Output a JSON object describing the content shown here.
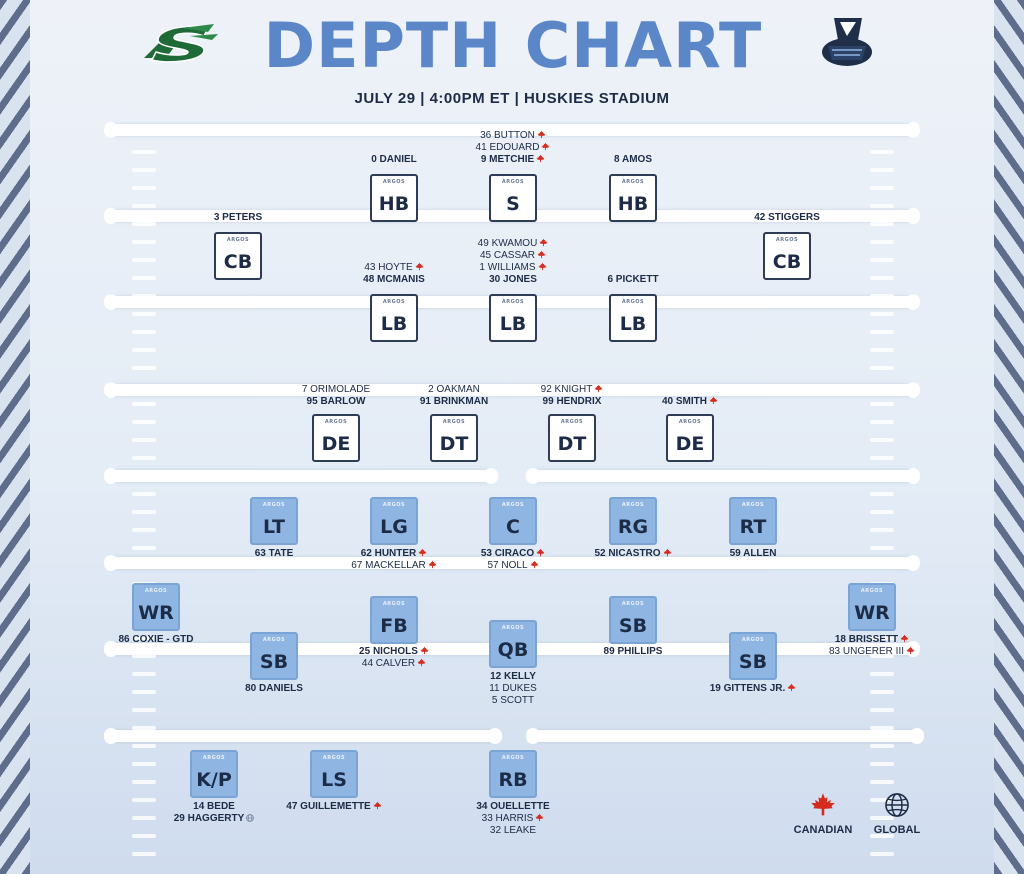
{
  "header": {
    "title": "DEPTH CHART",
    "subtitle": "JULY 29 | 4:00PM ET | HUSKIES STADIUM"
  },
  "colors": {
    "title": "#5b86c7",
    "text": "#1c2b46",
    "canadian": "#d52b1e",
    "offense_box": "#8fb5e3",
    "defense_box": "#ffffff"
  },
  "box_tag": "ARGOS",
  "legend": {
    "canadian": "CANADIAN",
    "global": "GLOBAL",
    "canadian_icon": "maple-leaf-icon",
    "global_icon": "globe-icon"
  },
  "positions": [
    {
      "id": "hb-left",
      "label": "HB",
      "unit": "defense",
      "players": [
        {
          "name": "0 DANIEL",
          "bold": true
        }
      ]
    },
    {
      "id": "s",
      "label": "S",
      "unit": "defense",
      "players": [
        {
          "name": "36 BUTTON",
          "can": true
        },
        {
          "name": "41 EDOUARD",
          "can": true
        },
        {
          "name": "9 METCHIE",
          "bold": true,
          "can": true
        }
      ]
    },
    {
      "id": "hb-right",
      "label": "HB",
      "unit": "defense",
      "players": [
        {
          "name": "8 AMOS",
          "bold": true
        }
      ]
    },
    {
      "id": "cb-left",
      "label": "CB",
      "unit": "defense",
      "players": [
        {
          "name": "3 PETERS",
          "bold": true
        }
      ]
    },
    {
      "id": "cb-right",
      "label": "CB",
      "unit": "defense",
      "players": [
        {
          "name": "42 STIGGERS",
          "bold": true
        }
      ]
    },
    {
      "id": "lb-left",
      "label": "LB",
      "unit": "defense",
      "players": [
        {
          "name": "43 HOYTE",
          "can": true
        },
        {
          "name": "48 MCMANIS",
          "bold": true
        }
      ]
    },
    {
      "id": "lb-mid",
      "label": "LB",
      "unit": "defense",
      "players": [
        {
          "name": "49 KWAMOU",
          "can": true
        },
        {
          "name": "45 CASSAR",
          "can": true
        },
        {
          "name": "1 WILLIAMS",
          "can": true
        },
        {
          "name": "30 JONES",
          "bold": true
        }
      ]
    },
    {
      "id": "lb-right",
      "label": "LB",
      "unit": "defense",
      "players": [
        {
          "name": "6 PICKETT",
          "bold": true
        }
      ]
    },
    {
      "id": "de-left",
      "label": "DE",
      "unit": "defense",
      "players": [
        {
          "name": "7 ORIMOLADE"
        },
        {
          "name": "95 BARLOW",
          "bold": true
        }
      ]
    },
    {
      "id": "dt-left",
      "label": "DT",
      "unit": "defense",
      "players": [
        {
          "name": "2 OAKMAN"
        },
        {
          "name": "91 BRINKMAN",
          "bold": true
        }
      ]
    },
    {
      "id": "dt-right",
      "label": "DT",
      "unit": "defense",
      "players": [
        {
          "name": "92 KNIGHT",
          "can": true
        },
        {
          "name": "99 HENDRIX",
          "bold": true
        }
      ]
    },
    {
      "id": "de-right",
      "label": "DE",
      "unit": "defense",
      "players": [
        {
          "name": "40 SMITH",
          "bold": true,
          "can": true
        }
      ]
    },
    {
      "id": "lt",
      "label": "LT",
      "unit": "offense",
      "players": [
        {
          "name": "63 TATE",
          "bold": true
        }
      ]
    },
    {
      "id": "lg",
      "label": "LG",
      "unit": "offense",
      "players": [
        {
          "name": "62 HUNTER",
          "bold": true,
          "can": true
        },
        {
          "name": "67 MACKELLAR",
          "can": true
        }
      ]
    },
    {
      "id": "c",
      "label": "C",
      "unit": "offense",
      "players": [
        {
          "name": "53 CIRACO",
          "bold": true,
          "can": true
        },
        {
          "name": "57 NOLL",
          "can": true
        }
      ]
    },
    {
      "id": "rg",
      "label": "RG",
      "unit": "offense",
      "players": [
        {
          "name": "52 NICASTRO",
          "bold": true,
          "can": true
        }
      ]
    },
    {
      "id": "rt",
      "label": "RT",
      "unit": "offense",
      "players": [
        {
          "name": "59 ALLEN",
          "bold": true
        }
      ]
    },
    {
      "id": "wr-left",
      "label": "WR",
      "unit": "offense",
      "players": [
        {
          "name": "86 COXIE - GTD",
          "bold": true
        }
      ]
    },
    {
      "id": "fb",
      "label": "FB",
      "unit": "offense",
      "players": [
        {
          "name": "25 NICHOLS",
          "bold": true,
          "can": true
        },
        {
          "name": "44 CALVER",
          "can": true
        }
      ]
    },
    {
      "id": "sb-right-inner",
      "label": "SB",
      "unit": "offense",
      "players": [
        {
          "name": "89 PHILLIPS",
          "bold": true
        }
      ]
    },
    {
      "id": "wr-right",
      "label": "WR",
      "unit": "offense",
      "players": [
        {
          "name": "18 BRISSETT",
          "bold": true,
          "can": true
        },
        {
          "name": "83 UNGERER III",
          "can": true
        }
      ]
    },
    {
      "id": "sb-left",
      "label": "SB",
      "unit": "offense",
      "players": [
        {
          "name": "80 DANIELS",
          "bold": true
        }
      ]
    },
    {
      "id": "qb",
      "label": "QB",
      "unit": "offense",
      "players": [
        {
          "name": "12 KELLY",
          "bold": true
        },
        {
          "name": "11 DUKES"
        },
        {
          "name": "5 SCOTT"
        }
      ]
    },
    {
      "id": "sb-right-outer",
      "label": "SB",
      "unit": "offense",
      "players": [
        {
          "name": "19 GITTENS JR.",
          "bold": true,
          "can": true
        }
      ]
    },
    {
      "id": "kp",
      "label": "K/P",
      "unit": "offense",
      "players": [
        {
          "name": "14 BEDE",
          "bold": true
        },
        {
          "name": "29 HAGGERTY",
          "bold": true,
          "global": true
        }
      ]
    },
    {
      "id": "ls",
      "label": "LS",
      "unit": "offense",
      "players": [
        {
          "name": "47 GUILLEMETTE",
          "bold": true,
          "can": true
        }
      ]
    },
    {
      "id": "rb",
      "label": "RB",
      "unit": "offense",
      "players": [
        {
          "name": "34 OUELLETTE",
          "bold": true
        },
        {
          "name": "33 HARRIS",
          "can": true
        },
        {
          "name": "32 LEAKE"
        }
      ]
    }
  ]
}
